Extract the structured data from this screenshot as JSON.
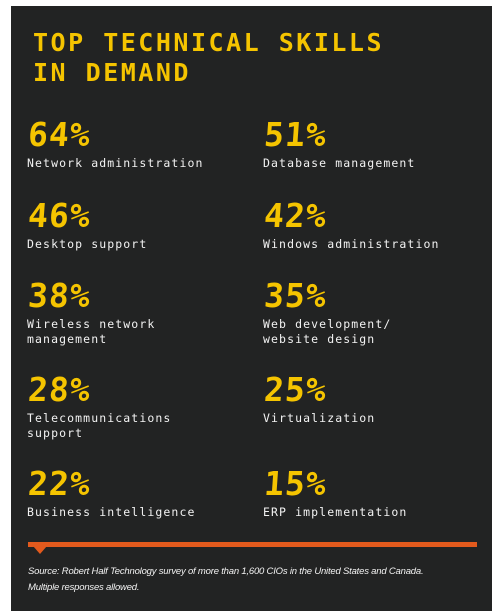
{
  "title": {
    "line1": "TOP TECHNICAL SKILLS",
    "line2": "IN DEMAND"
  },
  "colors": {
    "background": "#222323",
    "accent_yellow": "#f5c400",
    "accent_orange": "#e35a1d",
    "text": "#f2f2f2"
  },
  "skills": [
    {
      "percent": "64%",
      "label": "Network administration"
    },
    {
      "percent": "51%",
      "label": "Database management"
    },
    {
      "percent": "46%",
      "label": "Desktop support"
    },
    {
      "percent": "42%",
      "label": "Windows administration"
    },
    {
      "percent": "38%",
      "label": "Wireless network\nmanagement"
    },
    {
      "percent": "35%",
      "label": "Web development/\nwebsite design"
    },
    {
      "percent": "28%",
      "label": "Telecommunications\nsupport"
    },
    {
      "percent": "25%",
      "label": "Virtualization"
    },
    {
      "percent": "22%",
      "label": "Business intelligence"
    },
    {
      "percent": "15%",
      "label": "ERP implementation"
    }
  ],
  "source": "Source: Robert Half Technology survey of more than 1,600 CIOs in the United States and Canada. Multiple responses allowed."
}
